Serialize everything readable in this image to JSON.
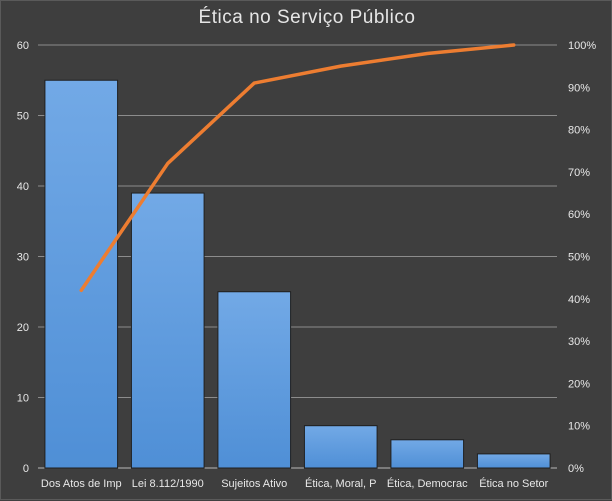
{
  "chart_data": {
    "type": "bar",
    "title": "Ética  no Serviço Público",
    "categories": [
      "Dos Atos de Imp",
      "Lei 8.112/1990",
      "Sujeitos Ativo",
      "Ética, Moral, P",
      "Ética, Democrac",
      "Ética no Setor"
    ],
    "series": [
      {
        "type": "bar",
        "values": [
          55,
          39,
          25,
          6,
          4,
          2
        ],
        "color": "#4f8fd6",
        "axis": "left"
      },
      {
        "type": "line",
        "values": [
          0.42,
          0.72,
          0.91,
          0.95,
          0.98,
          1.0
        ],
        "color": "#ed7d31",
        "axis": "right"
      }
    ],
    "y_left": {
      "ylim": [
        0,
        60
      ],
      "ticks": [
        0,
        10,
        20,
        30,
        40,
        50,
        60
      ],
      "tick_labels": [
        "0",
        "10",
        "20",
        "30",
        "40",
        "50",
        "60"
      ]
    },
    "y_right": {
      "ylim": [
        0,
        1
      ],
      "ticks": [
        0,
        0.1,
        0.2,
        0.3,
        0.4,
        0.5,
        0.6,
        0.7,
        0.8,
        0.9,
        1.0
      ],
      "tick_labels": [
        "0%",
        "10%",
        "20%",
        "30%",
        "40%",
        "50%",
        "60%",
        "70%",
        "80%",
        "90%",
        "100%"
      ]
    },
    "grid": true,
    "legend": "none"
  }
}
